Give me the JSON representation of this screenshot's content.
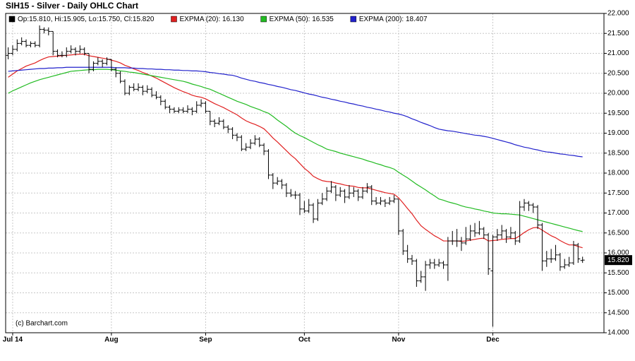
{
  "chart_data": {
    "type": "ohlc",
    "title": "SIH15 - Silver - Daily OHLC Chart",
    "credit": "(c) Barchart.com",
    "ohlc_label": "Op:15.810, Hi:15.905, Lo:15.750, Cl:15.820",
    "ohlc_color": "#000000",
    "last_label": "15.820",
    "categories": [
      null,
      "Jul 14",
      null,
      null,
      null,
      null,
      null,
      null,
      null,
      null,
      null,
      null,
      null,
      null,
      null,
      null,
      null,
      null,
      null,
      null,
      null,
      null,
      null,
      "Aug",
      null,
      null,
      null,
      null,
      null,
      null,
      null,
      null,
      null,
      null,
      null,
      null,
      null,
      null,
      null,
      null,
      null,
      null,
      null,
      null,
      "Sep",
      null,
      null,
      null,
      null,
      null,
      null,
      null,
      null,
      null,
      null,
      null,
      null,
      null,
      null,
      null,
      null,
      null,
      null,
      null,
      null,
      null,
      "Oct",
      null,
      null,
      null,
      null,
      null,
      null,
      null,
      null,
      null,
      null,
      null,
      null,
      null,
      null,
      null,
      null,
      null,
      null,
      null,
      null,
      "Nov",
      null,
      null,
      null,
      null,
      null,
      null,
      null,
      null,
      null,
      null,
      null,
      null,
      null,
      null,
      null,
      null,
      null,
      null,
      null,
      null,
      "Dec",
      null,
      null,
      null,
      null,
      null,
      null,
      null,
      null,
      null,
      null,
      null,
      null,
      null,
      null,
      null,
      null,
      null,
      null,
      null,
      null
    ],
    "open": [
      20.95,
      21.0,
      21.1,
      21.25,
      21.3,
      21.2,
      21.25,
      21.2,
      21.6,
      21.58,
      21.55,
      21.05,
      20.95,
      20.95,
      21.05,
      21.1,
      21.05,
      21.1,
      21.0,
      20.6,
      20.75,
      20.8,
      20.75,
      20.85,
      20.6,
      20.5,
      20.3,
      20.0,
      20.15,
      20.1,
      20.15,
      20.05,
      20.1,
      19.95,
      19.9,
      19.8,
      19.65,
      19.6,
      19.55,
      19.58,
      19.55,
      19.6,
      19.55,
      19.7,
      19.75,
      19.55,
      19.3,
      19.25,
      19.3,
      19.15,
      19.1,
      18.95,
      18.9,
      18.6,
      18.65,
      18.75,
      18.85,
      18.7,
      18.55,
      17.95,
      17.75,
      17.8,
      17.7,
      17.5,
      17.45,
      17.45,
      17.1,
      17.05,
      17.2,
      16.85,
      17.25,
      17.35,
      17.55,
      17.65,
      17.45,
      17.55,
      17.4,
      17.5,
      17.55,
      17.4,
      17.55,
      17.65,
      17.3,
      17.25,
      17.3,
      17.25,
      17.3,
      17.35,
      16.55,
      16.05,
      15.85,
      15.8,
      15.3,
      15.4,
      15.7,
      15.75,
      15.7,
      15.75,
      15.7,
      16.3,
      16.3,
      16.3,
      16.25,
      16.35,
      16.55,
      16.5,
      16.6,
      16.45,
      15.55,
      16.4,
      16.45,
      16.55,
      16.4,
      16.5,
      16.3,
      17.15,
      17.25,
      17.2,
      17.15,
      16.7,
      15.8,
      15.85,
      15.85,
      15.95,
      15.65,
      15.7,
      15.75,
      16.2,
      15.81
    ],
    "high": [
      21.15,
      21.2,
      21.35,
      21.4,
      21.35,
      21.3,
      21.3,
      21.7,
      21.65,
      21.65,
      21.55,
      21.1,
      21.05,
      21.15,
      21.2,
      21.15,
      21.2,
      21.15,
      21.0,
      20.8,
      20.9,
      20.85,
      20.9,
      20.85,
      20.65,
      20.55,
      20.35,
      20.2,
      20.25,
      20.25,
      20.2,
      20.2,
      20.15,
      20.05,
      19.95,
      19.85,
      19.7,
      19.65,
      19.65,
      19.65,
      19.7,
      19.65,
      19.8,
      19.85,
      19.8,
      19.55,
      19.35,
      19.4,
      19.35,
      19.2,
      19.15,
      19.0,
      18.95,
      18.75,
      18.85,
      18.95,
      18.9,
      18.75,
      18.6,
      18.0,
      17.9,
      17.85,
      17.75,
      17.6,
      17.55,
      17.5,
      17.3,
      17.35,
      17.25,
      17.35,
      17.5,
      17.65,
      17.8,
      17.7,
      17.65,
      17.6,
      17.7,
      17.65,
      17.6,
      17.65,
      17.75,
      17.7,
      17.4,
      17.4,
      17.35,
      17.4,
      17.45,
      17.35,
      16.6,
      16.2,
      15.95,
      15.85,
      15.55,
      15.8,
      15.85,
      15.85,
      15.85,
      15.8,
      16.4,
      16.55,
      16.6,
      16.4,
      16.65,
      16.7,
      16.75,
      16.8,
      16.65,
      16.5,
      16.45,
      16.6,
      16.7,
      16.6,
      16.65,
      16.55,
      17.3,
      17.35,
      17.3,
      17.25,
      17.2,
      16.75,
      16.05,
      16.1,
      16.2,
      16.0,
      15.85,
      15.9,
      16.3,
      16.25,
      15.905
    ],
    "low": [
      20.85,
      20.95,
      21.05,
      21.2,
      21.15,
      21.15,
      21.15,
      21.15,
      21.5,
      21.45,
      20.95,
      20.9,
      20.9,
      20.9,
      21.0,
      20.95,
      21.0,
      20.95,
      20.5,
      20.55,
      20.7,
      20.65,
      20.7,
      20.55,
      20.4,
      20.25,
      19.95,
      19.95,
      20.05,
      20.05,
      19.95,
      20.0,
      19.9,
      19.85,
      19.7,
      19.6,
      19.5,
      19.5,
      19.5,
      19.5,
      19.5,
      19.45,
      19.5,
      19.65,
      19.5,
      19.2,
      19.15,
      19.2,
      19.1,
      19.0,
      18.85,
      18.8,
      18.55,
      18.55,
      18.6,
      18.7,
      18.65,
      18.45,
      17.85,
      17.6,
      17.7,
      17.6,
      17.4,
      17.4,
      17.35,
      16.95,
      17.0,
      17.0,
      16.75,
      16.8,
      17.2,
      17.3,
      17.5,
      17.3,
      17.4,
      17.25,
      17.35,
      17.4,
      17.3,
      17.35,
      17.5,
      17.2,
      17.2,
      17.2,
      17.15,
      17.2,
      17.25,
      16.45,
      15.95,
      15.75,
      15.7,
      15.15,
      15.25,
      15.05,
      15.6,
      15.6,
      15.65,
      15.6,
      15.3,
      16.2,
      16.15,
      16.05,
      16.2,
      16.3,
      16.4,
      16.45,
      16.35,
      15.45,
      14.15,
      16.3,
      16.35,
      16.25,
      16.35,
      16.2,
      16.25,
      17.05,
      17.05,
      17.0,
      16.6,
      15.55,
      15.65,
      15.75,
      15.8,
      15.55,
      15.6,
      15.65,
      15.7,
      15.75,
      15.75
    ],
    "close": [
      21.0,
      21.1,
      21.25,
      21.3,
      21.2,
      21.25,
      21.2,
      21.6,
      21.58,
      21.55,
      21.05,
      20.95,
      20.95,
      21.05,
      21.1,
      21.05,
      21.1,
      21.0,
      20.6,
      20.75,
      20.8,
      20.75,
      20.85,
      20.6,
      20.5,
      20.3,
      20.0,
      20.15,
      20.1,
      20.15,
      20.05,
      20.1,
      19.95,
      19.9,
      19.8,
      19.65,
      19.6,
      19.55,
      19.58,
      19.55,
      19.6,
      19.55,
      19.7,
      19.75,
      19.55,
      19.3,
      19.25,
      19.3,
      19.15,
      19.1,
      18.95,
      18.9,
      18.6,
      18.65,
      18.75,
      18.85,
      18.7,
      18.55,
      17.95,
      17.75,
      17.8,
      17.7,
      17.5,
      17.45,
      17.45,
      17.1,
      17.05,
      17.2,
      16.85,
      17.25,
      17.35,
      17.55,
      17.65,
      17.45,
      17.55,
      17.4,
      17.5,
      17.55,
      17.4,
      17.55,
      17.65,
      17.3,
      17.25,
      17.3,
      17.25,
      17.3,
      17.35,
      16.55,
      16.05,
      15.85,
      15.8,
      15.3,
      15.4,
      15.7,
      15.75,
      15.7,
      15.75,
      15.7,
      16.3,
      16.3,
      16.3,
      16.25,
      16.35,
      16.55,
      16.5,
      16.6,
      16.45,
      15.6,
      16.4,
      16.45,
      16.55,
      16.4,
      16.5,
      16.3,
      17.15,
      17.25,
      17.2,
      17.15,
      16.7,
      15.8,
      15.85,
      15.85,
      15.95,
      15.65,
      15.7,
      15.75,
      16.2,
      15.85,
      15.82
    ],
    "series": [
      {
        "name": "EXPMA (20): 16.130",
        "color": "#e02020",
        "values": [
          20.4,
          20.48,
          20.56,
          20.62,
          20.68,
          20.72,
          20.76,
          20.82,
          20.87,
          20.91,
          20.92,
          20.93,
          20.94,
          20.95,
          20.96,
          20.97,
          20.98,
          20.98,
          20.94,
          20.92,
          20.9,
          20.88,
          20.86,
          20.83,
          20.8,
          20.76,
          20.7,
          20.66,
          20.61,
          20.57,
          20.52,
          20.48,
          20.43,
          20.38,
          20.32,
          20.26,
          20.2,
          20.14,
          20.09,
          20.04,
          20.0,
          19.95,
          19.92,
          19.9,
          19.86,
          19.8,
          19.74,
          19.69,
          19.64,
          19.58,
          19.52,
          19.46,
          19.38,
          19.31,
          19.26,
          19.22,
          19.17,
          19.11,
          19.0,
          18.88,
          18.78,
          18.67,
          18.56,
          18.45,
          18.36,
          18.24,
          18.12,
          18.03,
          17.92,
          17.86,
          17.81,
          17.79,
          17.78,
          17.75,
          17.73,
          17.7,
          17.68,
          17.67,
          17.64,
          17.63,
          17.63,
          17.6,
          17.57,
          17.54,
          17.51,
          17.49,
          17.47,
          17.38,
          17.25,
          17.11,
          16.98,
          16.82,
          16.68,
          16.59,
          16.51,
          16.43,
          16.37,
          16.3,
          16.3,
          16.3,
          16.3,
          16.29,
          16.3,
          16.32,
          16.34,
          16.36,
          16.37,
          16.3,
          16.31,
          16.32,
          16.34,
          16.35,
          16.36,
          16.36,
          16.43,
          16.51,
          16.58,
          16.63,
          16.64,
          16.57,
          16.5,
          16.43,
          16.38,
          16.31,
          16.25,
          16.2,
          16.2,
          16.16,
          16.13
        ]
      },
      {
        "name": "EXPMA (50): 16.535",
        "color": "#22bb22",
        "values": [
          20.0,
          20.06,
          20.11,
          20.16,
          20.21,
          20.26,
          20.3,
          20.34,
          20.37,
          20.4,
          20.43,
          20.46,
          20.49,
          20.52,
          20.55,
          20.56,
          20.57,
          20.58,
          20.59,
          20.59,
          20.6,
          20.6,
          20.6,
          20.59,
          20.58,
          20.56,
          20.55,
          20.53,
          20.52,
          20.5,
          20.48,
          20.46,
          20.44,
          20.42,
          20.4,
          20.38,
          20.36,
          20.34,
          20.32,
          20.3,
          20.27,
          20.23,
          20.2,
          20.17,
          20.13,
          20.1,
          20.05,
          20.0,
          19.95,
          19.9,
          19.85,
          19.8,
          19.76,
          19.72,
          19.67,
          19.63,
          19.59,
          19.54,
          19.5,
          19.42,
          19.33,
          19.25,
          19.17,
          19.08,
          19.0,
          18.94,
          18.89,
          18.83,
          18.77,
          18.71,
          18.66,
          18.6,
          18.57,
          18.54,
          18.5,
          18.47,
          18.44,
          18.41,
          18.38,
          18.35,
          18.31,
          18.28,
          18.24,
          18.21,
          18.17,
          18.14,
          18.1,
          18.02,
          17.95,
          17.88,
          17.8,
          17.72,
          17.65,
          17.58,
          17.5,
          17.43,
          17.35,
          17.32,
          17.28,
          17.25,
          17.22,
          17.18,
          17.15,
          17.13,
          17.1,
          17.08,
          17.05,
          17.03,
          17.0,
          16.99,
          16.98,
          16.98,
          16.97,
          16.96,
          16.95,
          16.92,
          16.89,
          16.86,
          16.83,
          16.8,
          16.77,
          16.74,
          16.71,
          16.68,
          16.65,
          16.62,
          16.59,
          16.56,
          16.535
        ]
      },
      {
        "name": "EXPMA (200): 18.407",
        "color": "#2222cc",
        "values": [
          20.55,
          20.56,
          20.57,
          20.58,
          20.59,
          20.6,
          20.61,
          20.62,
          20.62,
          20.63,
          20.63,
          20.64,
          20.64,
          20.65,
          20.65,
          20.65,
          20.65,
          20.65,
          20.65,
          20.65,
          20.65,
          20.65,
          20.65,
          20.65,
          20.64,
          20.64,
          20.64,
          20.63,
          20.63,
          20.62,
          20.62,
          20.61,
          20.61,
          20.6,
          20.6,
          20.59,
          20.59,
          20.58,
          20.58,
          20.57,
          20.57,
          20.56,
          20.56,
          20.55,
          20.54,
          20.52,
          20.51,
          20.49,
          20.48,
          20.46,
          20.45,
          20.42,
          20.38,
          20.35,
          20.32,
          20.3,
          20.27,
          20.25,
          20.22,
          20.2,
          20.17,
          20.15,
          20.12,
          20.09,
          20.07,
          20.04,
          20.01,
          19.98,
          19.96,
          19.93,
          19.9,
          19.88,
          19.85,
          19.83,
          19.8,
          19.78,
          19.75,
          19.73,
          19.7,
          19.68,
          19.65,
          19.63,
          19.6,
          19.58,
          19.55,
          19.53,
          19.5,
          19.48,
          19.45,
          19.41,
          19.36,
          19.32,
          19.27,
          19.23,
          19.19,
          19.14,
          19.1,
          19.08,
          19.06,
          19.05,
          19.03,
          19.01,
          18.99,
          18.97,
          18.95,
          18.94,
          18.92,
          18.9,
          18.87,
          18.84,
          18.81,
          18.78,
          18.75,
          18.71,
          18.68,
          18.65,
          18.63,
          18.6,
          18.58,
          18.55,
          18.53,
          18.52,
          18.5,
          18.48,
          18.47,
          18.45,
          18.44,
          18.42,
          18.407
        ]
      }
    ],
    "ylim": [
      14,
      22
    ],
    "yticks": [
      {
        "value": 14,
        "label": "14.000"
      },
      {
        "value": 14.5,
        "label": "14.500"
      },
      {
        "value": 15,
        "label": "15.000"
      },
      {
        "value": 15.5,
        "label": "15.500"
      },
      {
        "value": 16,
        "label": "16.000"
      },
      {
        "value": 16.5,
        "label": "16.500"
      },
      {
        "value": 17,
        "label": "17.000"
      },
      {
        "value": 17.5,
        "label": "17.500"
      },
      {
        "value": 18,
        "label": "18.000"
      },
      {
        "value": 18.5,
        "label": "18.500"
      },
      {
        "value": 19,
        "label": "19.000"
      },
      {
        "value": 19.5,
        "label": "19.500"
      },
      {
        "value": 20,
        "label": "20.000"
      },
      {
        "value": 20.5,
        "label": "20.500"
      },
      {
        "value": 21,
        "label": "21.000"
      },
      {
        "value": 21.5,
        "label": "21.500"
      },
      {
        "value": 22,
        "label": "22.000"
      }
    ],
    "grid": true
  }
}
